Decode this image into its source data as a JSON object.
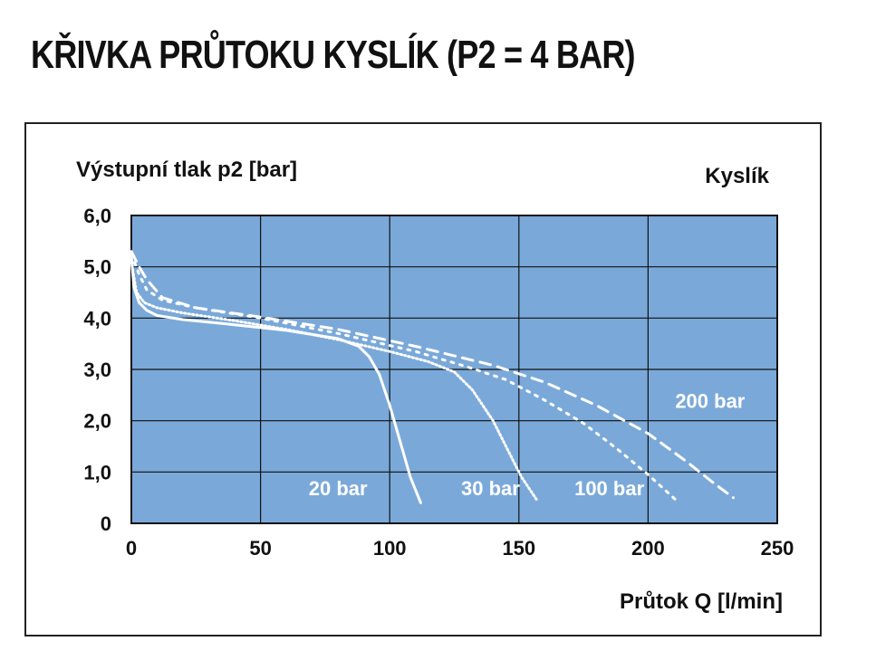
{
  "title": "KŘIVKA PRŮTOKU KYSLÍK (P2 = 4 BAR)",
  "chart_data": {
    "type": "line",
    "ylabel": "Výstupní tlak p2 [bar]",
    "xlabel": "Průtok Q [l/min]",
    "gas_label": "Kyslík",
    "xlim": [
      0,
      250
    ],
    "ylim": [
      0,
      6
    ],
    "x_ticks": [
      "0",
      "50",
      "100",
      "150",
      "200",
      "250"
    ],
    "y_ticks": [
      "0",
      "1,0",
      "2,0",
      "3,0",
      "4,0",
      "5,0",
      "6,0"
    ],
    "grid": true,
    "background_color": "#7aa9d9",
    "line_color": "#ffffff",
    "series": [
      {
        "name": "20 bar",
        "dash": "solid",
        "x": [
          0,
          1,
          3,
          6,
          10,
          20,
          40,
          60,
          80,
          88,
          92,
          96,
          100,
          104,
          108,
          112
        ],
        "y": [
          5.2,
          4.6,
          4.3,
          4.15,
          4.05,
          3.97,
          3.87,
          3.76,
          3.6,
          3.45,
          3.25,
          2.9,
          2.3,
          1.6,
          0.9,
          0.4
        ]
      },
      {
        "name": "30 bar",
        "dash": "dotted",
        "x": [
          0,
          2,
          5,
          10,
          20,
          40,
          60,
          80,
          100,
          115,
          125,
          132,
          140,
          146,
          151,
          157
        ],
        "y": [
          5.1,
          4.5,
          4.3,
          4.2,
          4.1,
          3.95,
          3.78,
          3.58,
          3.35,
          3.15,
          2.95,
          2.6,
          2.0,
          1.4,
          0.9,
          0.45
        ]
      },
      {
        "name": "100 bar",
        "dash": "dots-sparse",
        "x": [
          0,
          3,
          6,
          12,
          25,
          50,
          80,
          110,
          130,
          145,
          160,
          175,
          188,
          200,
          212
        ],
        "y": [
          5.25,
          4.85,
          4.55,
          4.35,
          4.2,
          4.0,
          3.7,
          3.35,
          3.05,
          2.8,
          2.4,
          1.95,
          1.45,
          0.95,
          0.4
        ]
      },
      {
        "name": "200 bar",
        "dash": "dashed",
        "x": [
          0,
          3,
          6,
          12,
          25,
          50,
          80,
          110,
          140,
          160,
          180,
          200,
          215,
          225,
          233
        ],
        "y": [
          5.3,
          5.0,
          4.75,
          4.4,
          4.2,
          4.02,
          3.78,
          3.45,
          3.08,
          2.75,
          2.3,
          1.75,
          1.2,
          0.8,
          0.5
        ]
      }
    ]
  }
}
